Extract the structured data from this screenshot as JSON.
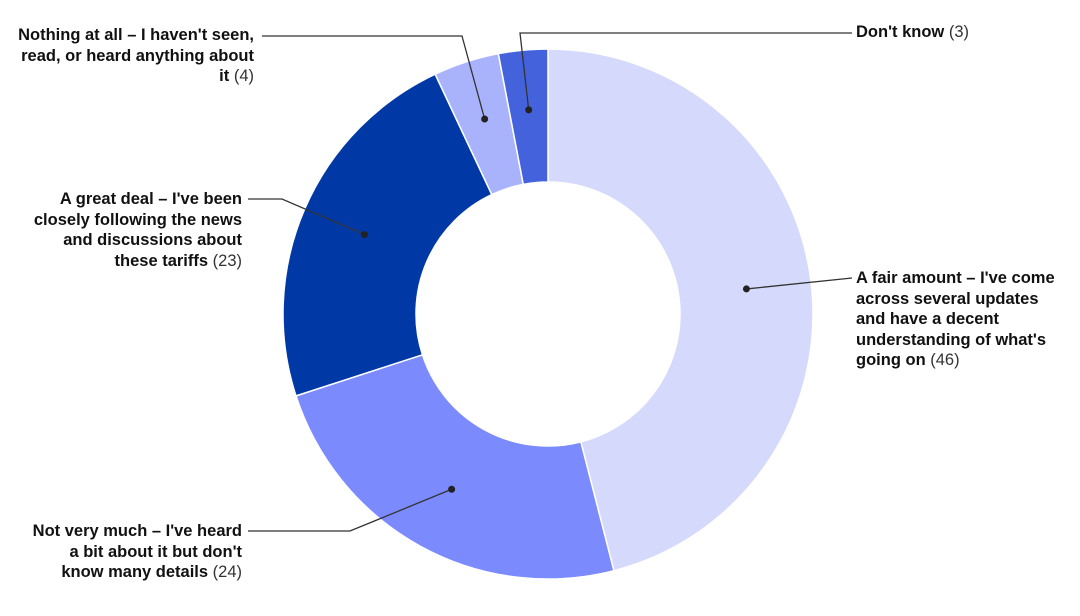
{
  "chart_data": {
    "type": "pie",
    "style": "donut",
    "title": "",
    "slices": [
      {
        "label": "A fair amount – I've come across several updates and have a decent understanding of what's going on",
        "value": 46,
        "display": "(46)",
        "color": "#d5dafc"
      },
      {
        "label": "Not very much – I've heard a bit about it but don't know many details",
        "value": 24,
        "display": "(24)",
        "color": "#7b8afd"
      },
      {
        "label": "A great deal – I've been closely following the news and discussions about these tariffs",
        "value": 23,
        "display": "(23)",
        "color": "#0039a6"
      },
      {
        "label": "Nothing at all – I haven't seen, read, or heard anything about it",
        "value": 4,
        "display": "(4)",
        "color": "#a9b3fb"
      },
      {
        "label": "Don't know",
        "value": 3,
        "display": "(3)",
        "color": "#4462dc"
      }
    ],
    "legend": "none",
    "leader_line_color": "#333333"
  }
}
